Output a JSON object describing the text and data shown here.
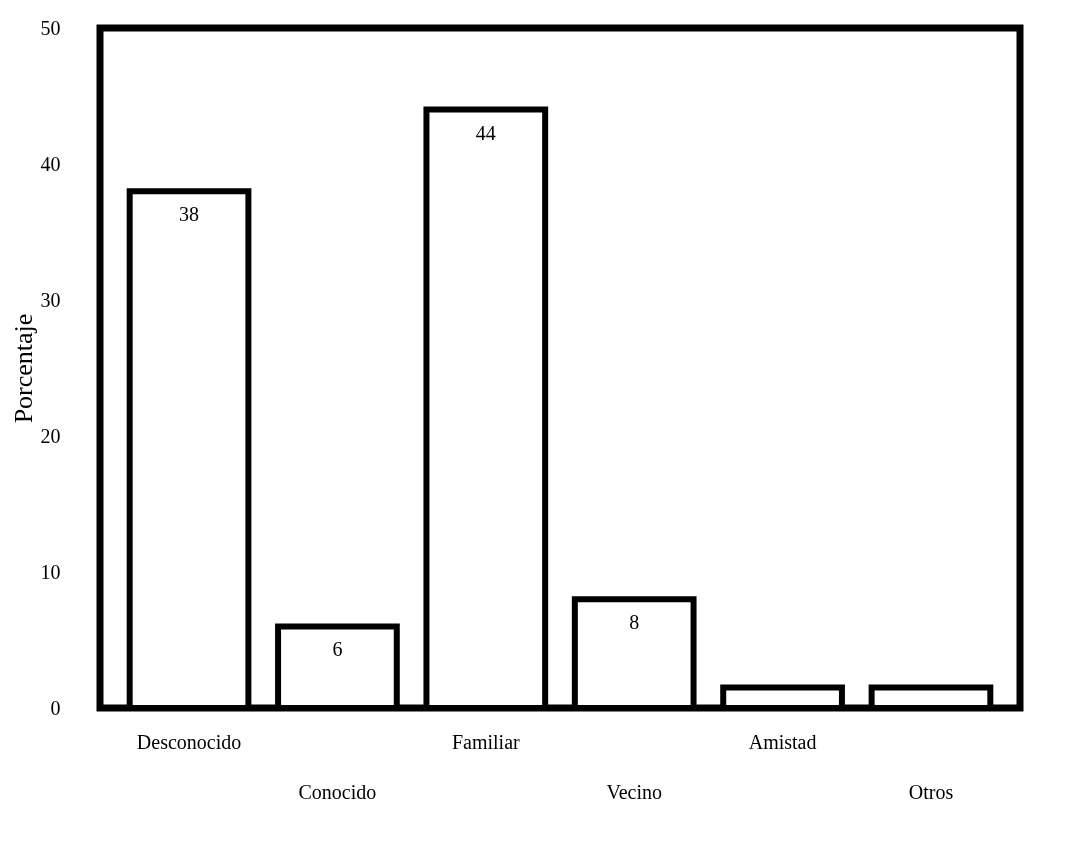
{
  "chart_data": {
    "type": "bar",
    "ylabel": "Porcentaje",
    "categories": [
      "Desconocido",
      "Conocido",
      "Familiar",
      "Vecino",
      "Amistad",
      "Otros"
    ],
    "values": [
      38,
      6,
      44,
      8,
      1.5,
      1.5
    ],
    "value_labels": [
      "38",
      "6",
      "44",
      "8",
      null,
      null
    ],
    "color": "#ffffff",
    "ylim": [
      0,
      50
    ],
    "yticks": [
      0,
      10,
      20,
      30,
      40,
      50
    ],
    "grid": false
  }
}
